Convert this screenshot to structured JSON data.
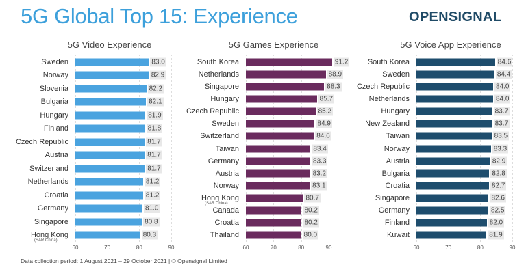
{
  "title": "5G Global Top 15: Experience",
  "logo": "OPENSIGNAL",
  "footer": "Data collection period: 1 August 2021 – 29 October 2021  |  © Opensignal Limited",
  "chart_data": [
    {
      "type": "bar",
      "orientation": "horizontal",
      "title": "5G Video Experience",
      "color": "#4aa3df",
      "xlim": [
        60,
        90
      ],
      "ticks": [
        60,
        70,
        80,
        90
      ],
      "categories": [
        "Sweden",
        "Norway",
        "Slovenia",
        "Bulgaria",
        "Hungary",
        "Finland",
        "Czech Republic",
        "Austria",
        "Switzerland",
        "Netherlands",
        "Croatia",
        "Germany",
        "Singapore",
        "Hong Kong"
      ],
      "subs": {
        "Hong Kong": "(SAR China)"
      },
      "values": [
        83.0,
        82.9,
        82.2,
        82.1,
        81.9,
        81.8,
        81.7,
        81.7,
        81.7,
        81.2,
        81.2,
        81.0,
        80.8,
        80.3
      ]
    },
    {
      "type": "bar",
      "orientation": "horizontal",
      "title": "5G Games Experience",
      "color": "#6a2b5e",
      "xlim": [
        60,
        90
      ],
      "ticks": [
        60,
        70,
        80,
        90
      ],
      "categories": [
        "South Korea",
        "Netherlands",
        "Singapore",
        "Hungary",
        "Czech Republic",
        "Sweden",
        "Switzerland",
        "Taiwan",
        "Germany",
        "Austria",
        "Norway",
        "Hong Kong",
        "Canada",
        "Croatia",
        "Thailand"
      ],
      "subs": {
        "Hong Kong": "(SAR China)"
      },
      "values": [
        91.2,
        88.9,
        88.3,
        85.7,
        85.2,
        84.9,
        84.6,
        83.4,
        83.3,
        83.2,
        83.1,
        80.7,
        80.2,
        80.2,
        80.0
      ]
    },
    {
      "type": "bar",
      "orientation": "horizontal",
      "title": "5G Voice App Experience",
      "color": "#1e4d6d",
      "xlim": [
        60,
        90
      ],
      "ticks": [
        60,
        70,
        80,
        90
      ],
      "categories": [
        "South Korea",
        "Sweden",
        "Czech Republic",
        "Netherlands",
        "Hungary",
        "New Zealand",
        "Taiwan",
        "Norway",
        "Austria",
        "Bulgaria",
        "Croatia",
        "Singapore",
        "Germany",
        "Finland",
        "Kuwait"
      ],
      "subs": {},
      "values": [
        84.6,
        84.4,
        84.0,
        84.0,
        83.7,
        83.7,
        83.5,
        83.3,
        82.9,
        82.8,
        82.7,
        82.6,
        82.5,
        82.0,
        81.9
      ]
    }
  ]
}
